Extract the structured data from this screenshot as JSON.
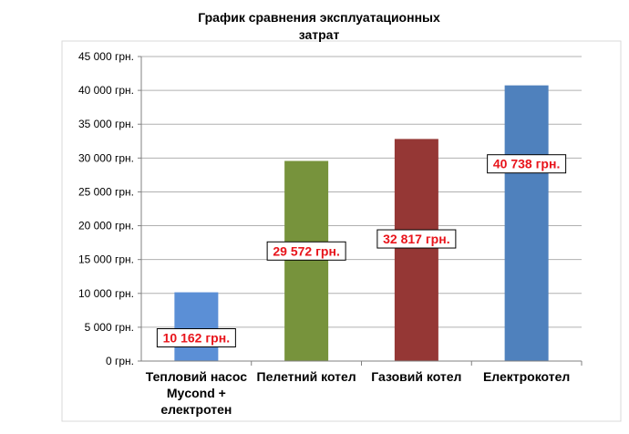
{
  "chart_data": {
    "type": "bar",
    "title_lines": [
      "График сравнения эксплуатационных",
      "затрат"
    ],
    "categories": [
      [
        "Тепловий насос",
        "Mycond +",
        "електротен"
      ],
      [
        "Пелетний котел"
      ],
      [
        "Газовий котел"
      ],
      [
        "Електрокотел"
      ]
    ],
    "values": [
      10162,
      29572,
      32817,
      40738
    ],
    "data_labels": [
      "10 162 грн.",
      "29 572 грн.",
      "32 817 грн.",
      "40 738 грн."
    ],
    "bar_colors": [
      "#5b8fd6",
      "#77933c",
      "#953735",
      "#4f81bd"
    ],
    "ylim": [
      0,
      45000
    ],
    "y_ticks": [
      0,
      5000,
      10000,
      15000,
      20000,
      25000,
      30000,
      35000,
      40000,
      45000
    ],
    "y_tick_labels": [
      "0 грн.",
      "5 000 грн.",
      "10 000 грн.",
      "15 000 грн.",
      "20 000 грн.",
      "25 000 грн.",
      "30 000 грн.",
      "35 000 грн.",
      "40 000 грн.",
      "45 000 грн."
    ],
    "grid": true,
    "legend": "none"
  }
}
